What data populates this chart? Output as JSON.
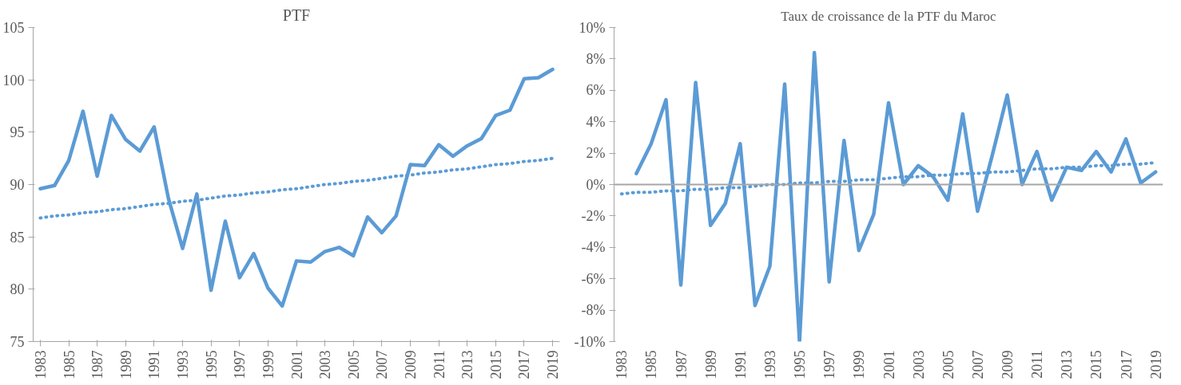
{
  "chart_data": [
    {
      "type": "line",
      "title": "PTF",
      "categories": [
        "1983",
        null,
        "1985",
        null,
        "1987",
        null,
        "1989",
        null,
        "1991",
        null,
        "1993",
        null,
        "1995",
        null,
        "1997",
        null,
        "1999",
        null,
        "2001",
        null,
        "2003",
        null,
        "2005",
        null,
        "2007",
        null,
        "2009",
        null,
        "2011",
        null,
        "2013",
        null,
        "2015",
        null,
        "2017",
        null,
        "2019"
      ],
      "series": [
        {
          "color": "#5b9bd5",
          "line_style": "solid",
          "values": [
            89.6,
            89.9,
            92.3,
            97.0,
            90.8,
            96.6,
            94.3,
            93.2,
            95.5,
            88.7,
            83.9,
            89.1,
            79.9,
            86.5,
            81.1,
            83.4,
            80.1,
            78.4,
            82.7,
            82.6,
            83.6,
            84.0,
            83.2,
            86.9,
            85.4,
            87.0,
            91.9,
            91.8,
            93.8,
            92.7,
            93.7,
            94.4,
            96.6,
            97.1,
            100.1,
            100.2,
            101.0
          ]
        },
        {
          "color": "#5b9bd5",
          "line_style": "dotted",
          "values": [
            86.8,
            87.0,
            87.1,
            87.3,
            87.4,
            87.6,
            87.7,
            87.9,
            88.1,
            88.2,
            88.4,
            88.5,
            88.7,
            88.9,
            89.0,
            89.2,
            89.3,
            89.5,
            89.6,
            89.8,
            90.0,
            90.1,
            90.3,
            90.4,
            90.6,
            90.8,
            90.9,
            91.1,
            91.2,
            91.4,
            91.5,
            91.7,
            91.9,
            92.0,
            92.2,
            92.3,
            92.5
          ]
        }
      ],
      "ylim": [
        75,
        105
      ],
      "yticks": [
        75,
        80,
        85,
        90,
        95,
        100,
        105
      ],
      "grid": false
    },
    {
      "type": "line",
      "title": "Taux de croissance de la PTF du Maroc",
      "categories": [
        "1983",
        null,
        "1985",
        null,
        "1987",
        null,
        "1989",
        null,
        "1991",
        null,
        "1993",
        null,
        "1995",
        null,
        "1997",
        null,
        "1999",
        null,
        "2001",
        null,
        "2003",
        null,
        "2005",
        null,
        "2007",
        null,
        "2009",
        null,
        "2011",
        null,
        "2013",
        null,
        "2015",
        null,
        "2017",
        null,
        "2019"
      ],
      "series": [
        {
          "color": "#5b9bd5",
          "line_style": "solid",
          "values": [
            null,
            0.7,
            2.6,
            5.4,
            -6.4,
            6.5,
            -2.6,
            -1.2,
            2.6,
            -7.7,
            -5.2,
            6.4,
            -10.0,
            8.4,
            -6.2,
            2.8,
            -4.2,
            -1.9,
            5.2,
            0.0,
            1.2,
            0.5,
            -1.0,
            4.5,
            -1.7,
            1.9,
            5.7,
            0.0,
            2.1,
            -1.0,
            1.1,
            0.9,
            2.1,
            0.8,
            2.9,
            0.1,
            0.8
          ]
        },
        {
          "color": "#5b9bd5",
          "line_style": "dotted",
          "values": [
            -0.6,
            -0.5,
            -0.5,
            -0.4,
            -0.4,
            -0.3,
            -0.3,
            -0.2,
            -0.2,
            -0.1,
            0.0,
            0.0,
            0.1,
            0.1,
            0.2,
            0.2,
            0.3,
            0.3,
            0.4,
            0.5,
            0.5,
            0.6,
            0.6,
            0.7,
            0.7,
            0.8,
            0.8,
            0.9,
            1.0,
            1.0,
            1.1,
            1.1,
            1.2,
            1.2,
            1.3,
            1.3,
            1.4
          ]
        }
      ],
      "ylim": [
        -10,
        10
      ],
      "yticks": [
        {
          "value": -10,
          "label": "-10%"
        },
        {
          "value": -8,
          "label": "-8%"
        },
        {
          "value": -6,
          "label": "-6%"
        },
        {
          "value": -4,
          "label": "-4%"
        },
        {
          "value": -2,
          "label": "-2%"
        },
        {
          "value": 0,
          "label": "0%"
        },
        {
          "value": 2,
          "label": "2%"
        },
        {
          "value": 4,
          "label": "4%"
        },
        {
          "value": 6,
          "label": "6%"
        },
        {
          "value": 8,
          "label": "8%"
        },
        {
          "value": 10,
          "label": "10%"
        }
      ],
      "ref_lines": [
        {
          "axis": "y",
          "value": 0,
          "label": null,
          "color": "#a6a6a6"
        }
      ],
      "grid": false
    }
  ]
}
